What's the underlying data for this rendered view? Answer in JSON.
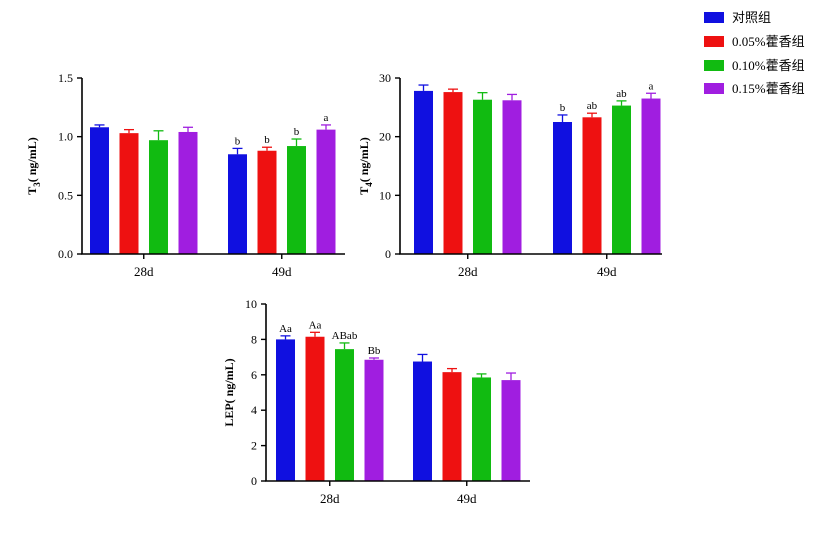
{
  "legend": [
    {
      "label": "对照组",
      "color": "#1010e0"
    },
    {
      "label": "0.05%藿香组",
      "color": "#ee1111"
    },
    {
      "label": "0.10%藿香组",
      "color": "#11bb11"
    },
    {
      "label": "0.15%藿香组",
      "color": "#a01ee0"
    }
  ],
  "chart_data": [
    {
      "type": "bar",
      "ylabel_main": "T",
      "ylabel_sub": "3",
      "ylabel_unit": "( ng/mL)",
      "ylim": [
        0,
        1.5
      ],
      "yticks": [
        "0.0",
        "0.5",
        "1.0",
        "1.5"
      ],
      "yvalues": [
        0,
        0.5,
        1.0,
        1.5
      ],
      "categories": [
        "28d",
        "49d"
      ],
      "series": [
        {
          "name": "对照组",
          "values": [
            1.08,
            0.85
          ],
          "errors": [
            0.02,
            0.05
          ],
          "sig": [
            "",
            "b"
          ]
        },
        {
          "name": "0.05%藿香组",
          "values": [
            1.03,
            0.88
          ],
          "errors": [
            0.03,
            0.03
          ],
          "sig": [
            "",
            "b"
          ]
        },
        {
          "name": "0.10%藿香组",
          "values": [
            0.97,
            0.92
          ],
          "errors": [
            0.08,
            0.06
          ],
          "sig": [
            "",
            "b"
          ]
        },
        {
          "name": "0.15%藿香组",
          "values": [
            1.04,
            1.06
          ],
          "errors": [
            0.04,
            0.04
          ],
          "sig": [
            "",
            "a"
          ]
        }
      ]
    },
    {
      "type": "bar",
      "ylabel_main": "T",
      "ylabel_sub": "4",
      "ylabel_unit": "( ng/mL)",
      "ylim": [
        0,
        30
      ],
      "yticks": [
        "0",
        "10",
        "20",
        "30"
      ],
      "yvalues": [
        0,
        10,
        20,
        30
      ],
      "categories": [
        "28d",
        "49d"
      ],
      "series": [
        {
          "name": "对照组",
          "values": [
            27.8,
            22.5
          ],
          "errors": [
            1.0,
            1.2
          ],
          "sig": [
            "",
            "b"
          ]
        },
        {
          "name": "0.05%藿香组",
          "values": [
            27.6,
            23.3
          ],
          "errors": [
            0.5,
            0.7
          ],
          "sig": [
            "",
            "ab"
          ]
        },
        {
          "name": "0.10%藿香组",
          "values": [
            26.3,
            25.3
          ],
          "errors": [
            1.2,
            0.8
          ],
          "sig": [
            "",
            "ab"
          ]
        },
        {
          "name": "0.15%藿香组",
          "values": [
            26.2,
            26.5
          ],
          "errors": [
            1.0,
            0.9
          ],
          "sig": [
            "",
            "a"
          ]
        }
      ]
    },
    {
      "type": "bar",
      "ylabel_main": "LEP",
      "ylabel_sub": "",
      "ylabel_unit": "( ng/mL)",
      "ylim": [
        0,
        10
      ],
      "yticks": [
        "0",
        "2",
        "4",
        "6",
        "8",
        "10"
      ],
      "yvalues": [
        0,
        2,
        4,
        6,
        8,
        10
      ],
      "categories": [
        "28d",
        "49d"
      ],
      "series": [
        {
          "name": "对照组",
          "values": [
            8.0,
            6.75
          ],
          "errors": [
            0.2,
            0.4
          ],
          "sig": [
            "Aa",
            ""
          ]
        },
        {
          "name": "0.05%藿香组",
          "values": [
            8.15,
            6.15
          ],
          "errors": [
            0.25,
            0.2
          ],
          "sig": [
            "Aa",
            ""
          ]
        },
        {
          "name": "0.10%藿香组",
          "values": [
            7.45,
            5.85
          ],
          "errors": [
            0.35,
            0.2
          ],
          "sig": [
            "ABab",
            ""
          ]
        },
        {
          "name": "0.15%藿香组",
          "values": [
            6.85,
            5.7
          ],
          "errors": [
            0.1,
            0.4
          ],
          "sig": [
            "Bb",
            ""
          ]
        }
      ]
    }
  ]
}
